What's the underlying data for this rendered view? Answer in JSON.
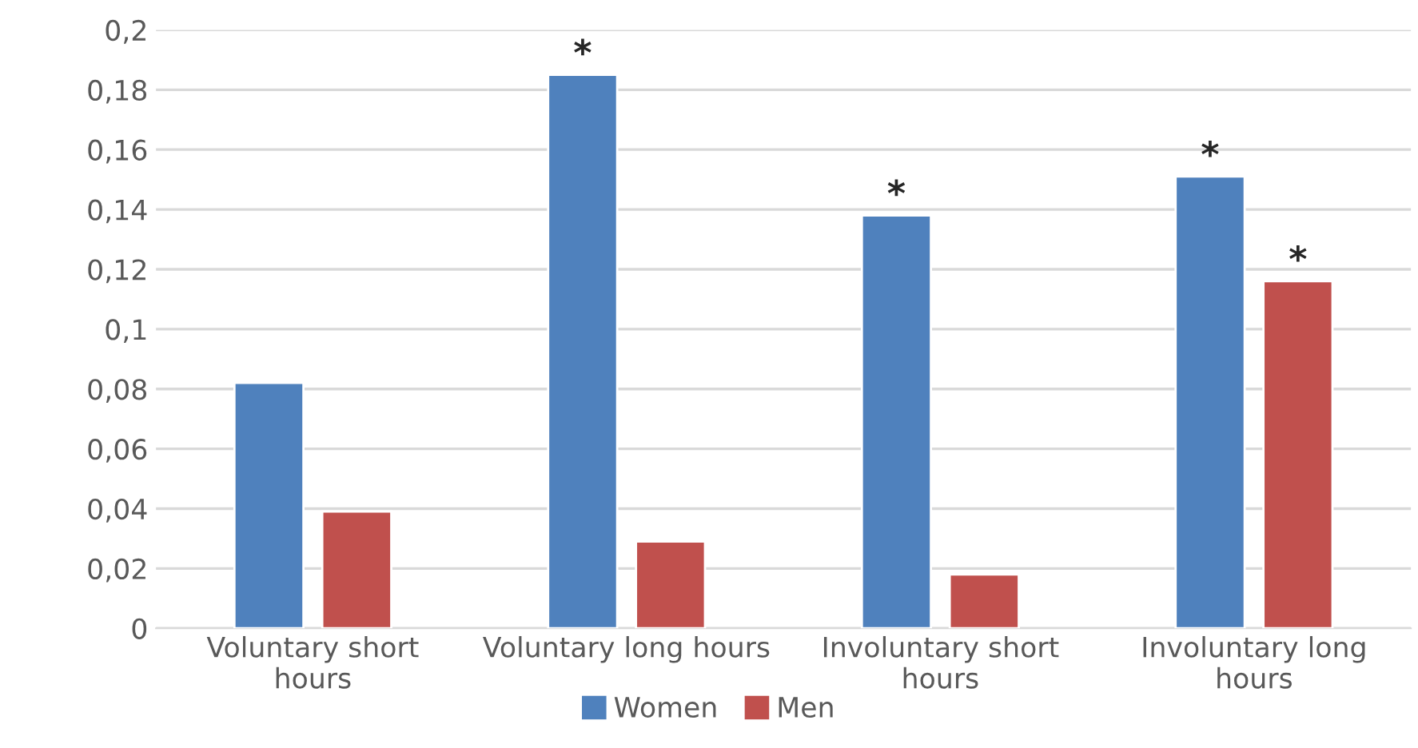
{
  "chart_data": {
    "type": "bar",
    "categories": [
      "Voluntary short\nhours",
      "Voluntary long hours",
      "Involuntary short\nhours",
      "Involuntary long\nhours"
    ],
    "series": [
      {
        "name": "Women",
        "color": "#4f81bd",
        "values": [
          0.082,
          0.185,
          0.138,
          0.151
        ],
        "value_labels": [
          null,
          "*",
          "*",
          "*"
        ]
      },
      {
        "name": "Men",
        "color": "#c0504d",
        "values": [
          0.039,
          0.029,
          0.018,
          0.116
        ],
        "value_labels": [
          null,
          null,
          null,
          "*"
        ]
      }
    ],
    "ylim": [
      0,
      0.2
    ],
    "yticks": [
      {
        "value": 0,
        "label": "0"
      },
      {
        "value": 0.02,
        "label": "0,02"
      },
      {
        "value": 0.04,
        "label": "0,04"
      },
      {
        "value": 0.06,
        "label": "0,06"
      },
      {
        "value": 0.08,
        "label": "0,08"
      },
      {
        "value": 0.1,
        "label": "0,1"
      },
      {
        "value": 0.12,
        "label": "0,12"
      },
      {
        "value": 0.14,
        "label": "0,14"
      },
      {
        "value": 0.16,
        "label": "0,16"
      },
      {
        "value": 0.18,
        "label": "0,18"
      },
      {
        "value": 0.2,
        "label": "0,2"
      }
    ],
    "grid": "y",
    "legend": "bottom"
  }
}
